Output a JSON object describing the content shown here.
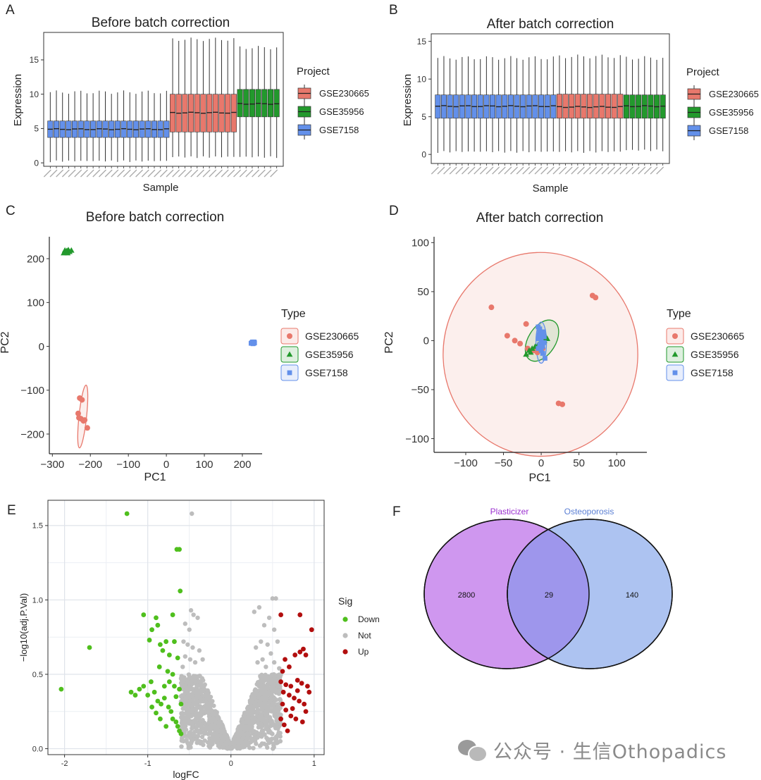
{
  "panels": {
    "A": {
      "letter": "A",
      "title": "Before batch correction"
    },
    "B": {
      "letter": "B",
      "title": "After batch correction"
    },
    "C": {
      "letter": "C",
      "title": "Before batch correction"
    },
    "D": {
      "letter": "D",
      "title": "After batch correction"
    },
    "E": {
      "letter": "E"
    },
    "F": {
      "letter": "F"
    }
  },
  "watermark": "公众号 · 生信Othopadics",
  "colors": {
    "GSE230665": "#e8786c",
    "GSE35956": "#22992c",
    "GSE7158": "#6390ea",
    "Down": "#4fbf1d",
    "Not": "#bdbdbd",
    "Up": "#b20e0e",
    "vennLeft": "#cf97ef",
    "vennRight": "#adc3f1",
    "vennOverlap": "#9e96ec"
  },
  "chart_data": [
    {
      "panel": "A",
      "type": "box",
      "title": "Before batch correction",
      "xlabel": "Sample",
      "ylabel": "Expression",
      "yticks": [
        0,
        5,
        10,
        15
      ],
      "ylim": [
        -0.5,
        19
      ],
      "legend_title": "Project",
      "legend_position": "right",
      "groups": [
        {
          "name": "GSE230665",
          "start": 20,
          "n": 11,
          "min": 0.7,
          "q1": 4.5,
          "median": 7.3,
          "q3": 10.0,
          "max": 18.0
        },
        {
          "name": "GSE35956",
          "start": 31,
          "n": 7,
          "min": 0.7,
          "q1": 6.7,
          "median": 8.6,
          "q3": 10.7,
          "max": 16.8
        },
        {
          "name": "GSE7158",
          "start": 0,
          "n": 20,
          "min": 0.1,
          "q1": 3.7,
          "median": 4.9,
          "q3": 6.1,
          "max": 10.3
        }
      ],
      "legend": [
        "GSE230665",
        "GSE35956",
        "GSE7158"
      ]
    },
    {
      "panel": "B",
      "type": "box",
      "title": "After batch correction",
      "xlabel": "Sample",
      "ylabel": "Expression",
      "yticks": [
        0,
        5,
        10,
        15
      ],
      "ylim": [
        -1.2,
        16
      ],
      "legend_title": "Project",
      "legend_position": "right",
      "groups": [
        {
          "name": "GSE230665",
          "start": 20,
          "n": 11,
          "min": 0.2,
          "q1": 4.8,
          "median": 6.3,
          "q3": 8.0,
          "max": 13.0
        },
        {
          "name": "GSE35956",
          "start": 31,
          "n": 7,
          "min": 0.4,
          "q1": 4.8,
          "median": 6.4,
          "q3": 7.9,
          "max": 12.8
        },
        {
          "name": "GSE7158",
          "start": 0,
          "n": 20,
          "min": 0.2,
          "q1": 4.8,
          "median": 6.4,
          "q3": 7.9,
          "max": 12.8
        }
      ],
      "legend": [
        "GSE230665",
        "GSE35956",
        "GSE7158"
      ]
    },
    {
      "panel": "C",
      "type": "scatter",
      "title": "Before batch correction",
      "xlabel": "PC1",
      "ylabel": "PC2",
      "xticks": [
        -300,
        -200,
        -100,
        0,
        100,
        200
      ],
      "yticks": [
        -200,
        -100,
        0,
        100,
        200
      ],
      "xlim": [
        -308,
        252
      ],
      "ylim": [
        -245,
        250
      ],
      "legend_title": "Type",
      "legend_position": "right",
      "series": [
        {
          "name": "GSE230665",
          "shape": "circle",
          "points": [
            [
              -228,
              -118
            ],
            [
              -232,
              -153
            ],
            [
              -230,
              -163
            ],
            [
              -225,
              -165
            ],
            [
              -218,
              -170
            ],
            [
              -208,
              -186
            ],
            [
              -222,
              -122
            ],
            [
              -215,
              -168
            ]
          ],
          "ellipse": {
            "cx": -220,
            "cy": -160,
            "rx": 10,
            "ry": 72,
            "angle": 6
          }
        },
        {
          "name": "GSE35956",
          "shape": "triangle",
          "points": [
            [
              -270,
              213
            ],
            [
              -265,
              216
            ],
            [
              -262,
              218
            ],
            [
              -258,
              220
            ],
            [
              -255,
              216
            ],
            [
              -260,
              213
            ],
            [
              -250,
              219
            ],
            [
              -267,
              219
            ]
          ],
          "ellipse": {
            "cx": -261,
            "cy": 216,
            "rx": 11,
            "ry": 3,
            "angle": 0
          }
        },
        {
          "name": "GSE7158",
          "shape": "square",
          "points": [
            [
              225,
              8
            ],
            [
              227,
              10
            ],
            [
              229,
              9
            ],
            [
              231,
              10
            ],
            [
              223,
              7
            ],
            [
              228,
              6
            ],
            [
              232,
              8
            ],
            [
              226,
              9
            ],
            [
              230,
              7
            ]
          ],
          "ellipse": {
            "cx": 228,
            "cy": 8,
            "rx": 5,
            "ry": 3,
            "angle": 0
          }
        }
      ],
      "legend": [
        "GSE230665",
        "GSE35956",
        "GSE7158"
      ]
    },
    {
      "panel": "D",
      "type": "scatter",
      "title": "After batch correction",
      "xlabel": "PC1",
      "ylabel": "PC2",
      "xticks": [
        -100,
        -50,
        0,
        50,
        100
      ],
      "yticks": [
        -100,
        -50,
        0,
        50,
        100
      ],
      "xlim": [
        -142,
        140
      ],
      "ylim": [
        -114,
        106
      ],
      "legend_title": "Type",
      "legend_position": "right",
      "series": [
        {
          "name": "GSE230665",
          "shape": "circle",
          "points": [
            [
              -66,
              34
            ],
            [
              -45,
              5
            ],
            [
              -35,
              0
            ],
            [
              -28,
              -3
            ],
            [
              -20,
              17
            ],
            [
              -18,
              -8
            ],
            [
              68,
              46
            ],
            [
              72,
              44
            ],
            [
              23,
              -64
            ],
            [
              28,
              -65
            ],
            [
              -5,
              -12
            ],
            [
              2,
              -8
            ],
            [
              -10,
              -10
            ]
          ],
          "ellipse": {
            "cx": -1,
            "cy": -14,
            "rx": 129,
            "ry": 104,
            "angle": 0
          }
        },
        {
          "name": "GSE35956",
          "shape": "triangle",
          "points": [
            [
              -20,
              -14
            ],
            [
              -16,
              -10
            ],
            [
              -12,
              -8
            ],
            [
              -8,
              -6
            ],
            [
              -4,
              -4
            ],
            [
              0,
              -2
            ],
            [
              4,
              0
            ],
            [
              8,
              2
            ],
            [
              -14,
              -12
            ],
            [
              6,
              4
            ]
          ],
          "ellipse": {
            "cx": 1,
            "cy": 0,
            "rx": 30,
            "ry": 14,
            "angle": -58
          }
        },
        {
          "name": "GSE7158",
          "shape": "square",
          "points": [
            [
              -4,
              14
            ],
            [
              -2,
              10
            ],
            [
              0,
              8
            ],
            [
              2,
              6
            ],
            [
              -4,
              2
            ],
            [
              0,
              0
            ],
            [
              4,
              -2
            ],
            [
              -2,
              -4
            ],
            [
              2,
              -6
            ],
            [
              -4,
              -8
            ],
            [
              0,
              -10
            ],
            [
              4,
              4
            ],
            [
              -2,
              12
            ],
            [
              2,
              -13
            ],
            [
              5,
              -18
            ],
            [
              0,
              3
            ],
            [
              -3,
              6
            ],
            [
              3,
              9
            ]
          ],
          "ellipse": {
            "cx": 0,
            "cy": -2,
            "rx": 7,
            "ry": 21,
            "angle": 0
          }
        }
      ],
      "legend": [
        "GSE230665",
        "GSE35956",
        "GSE7158"
      ]
    },
    {
      "panel": "E",
      "type": "scatter",
      "subtype": "volcano",
      "xlabel": "logFC",
      "ylabel": "−log10(adj.P.Val)",
      "xticks": [
        -2,
        -1,
        0,
        1
      ],
      "yticks": [
        0.0,
        0.5,
        1.0,
        1.5
      ],
      "xlim": [
        -2.2,
        1.12
      ],
      "ylim": [
        -0.04,
        1.67
      ],
      "legend_title": "Sig",
      "legend_position": "right",
      "series": [
        {
          "name": "Down",
          "points": [
            [
              -2.04,
              0.4
            ],
            [
              -1.7,
              0.68
            ],
            [
              -1.25,
              1.58
            ],
            [
              -0.65,
              1.34
            ],
            [
              -0.62,
              1.34
            ],
            [
              -0.61,
              1.06
            ],
            [
              -1.05,
              0.9
            ],
            [
              -0.7,
              0.9
            ],
            [
              -0.9,
              0.88
            ],
            [
              -0.88,
              0.83
            ],
            [
              -0.95,
              0.8
            ],
            [
              -0.98,
              0.73
            ],
            [
              -0.85,
              0.7
            ],
            [
              -0.78,
              0.72
            ],
            [
              -0.68,
              0.72
            ],
            [
              -0.82,
              0.66
            ],
            [
              -0.74,
              0.63
            ],
            [
              -0.64,
              0.61
            ],
            [
              -0.86,
              0.55
            ],
            [
              -0.76,
              0.52
            ],
            [
              -0.7,
              0.5
            ],
            [
              -1.2,
              0.38
            ],
            [
              -1.1,
              0.4
            ],
            [
              -1.05,
              0.42
            ],
            [
              -1.0,
              0.36
            ],
            [
              -0.92,
              0.38
            ],
            [
              -0.88,
              0.32
            ],
            [
              -0.84,
              0.3
            ],
            [
              -0.8,
              0.34
            ],
            [
              -0.75,
              0.28
            ],
            [
              -0.72,
              0.25
            ],
            [
              -0.7,
              0.2
            ],
            [
              -0.66,
              0.18
            ],
            [
              -0.64,
              0.15
            ],
            [
              -0.62,
              0.12
            ],
            [
              -0.6,
              0.1
            ],
            [
              -0.95,
              0.28
            ],
            [
              -0.9,
              0.24
            ],
            [
              -0.85,
              0.2
            ],
            [
              -0.78,
              0.15
            ],
            [
              -0.74,
              0.45
            ],
            [
              -0.68,
              0.42
            ],
            [
              -0.62,
              0.4
            ],
            [
              -0.6,
              0.3
            ],
            [
              -0.8,
              0.42
            ],
            [
              -1.15,
              0.36
            ],
            [
              -0.96,
              0.45
            ],
            [
              -0.66,
              0.35
            ]
          ]
        },
        {
          "name": "Up",
          "points": [
            [
              0.6,
              0.9
            ],
            [
              0.83,
              0.9
            ],
            [
              0.97,
              0.8
            ],
            [
              0.87,
              0.67
            ],
            [
              0.83,
              0.65
            ],
            [
              0.77,
              0.63
            ],
            [
              0.9,
              0.63
            ],
            [
              0.65,
              0.6
            ],
            [
              0.7,
              0.55
            ],
            [
              0.62,
              0.52
            ],
            [
              0.8,
              0.46
            ],
            [
              0.85,
              0.44
            ],
            [
              0.92,
              0.42
            ],
            [
              0.6,
              0.45
            ],
            [
              0.66,
              0.43
            ],
            [
              0.72,
              0.42
            ],
            [
              0.63,
              0.38
            ],
            [
              0.7,
              0.36
            ],
            [
              0.76,
              0.34
            ],
            [
              0.82,
              0.32
            ],
            [
              0.88,
              0.3
            ],
            [
              0.62,
              0.3
            ],
            [
              0.66,
              0.26
            ],
            [
              0.72,
              0.22
            ],
            [
              0.78,
              0.2
            ],
            [
              0.86,
              0.18
            ],
            [
              0.6,
              0.2
            ],
            [
              0.64,
              0.16
            ],
            [
              0.68,
              0.12
            ],
            [
              0.74,
              0.27
            ],
            [
              0.8,
              0.39
            ],
            [
              0.94,
              0.38
            ],
            [
              0.9,
              0.25
            ]
          ]
        },
        {
          "name": "Not",
          "points": "dense cloud, |logFC| < 0.6"
        }
      ],
      "legend": [
        "Down",
        "Not",
        "Up"
      ]
    },
    {
      "panel": "F",
      "type": "venn",
      "sets": [
        {
          "name": "Plasticizer",
          "only": 2800
        },
        {
          "name": "Osteoporosis",
          "only": 140
        }
      ],
      "intersection": 29
    }
  ]
}
